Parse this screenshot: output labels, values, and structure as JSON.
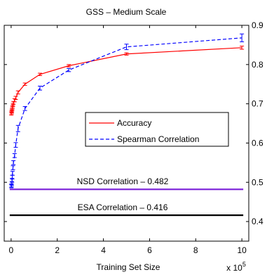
{
  "chart_data": {
    "type": "line",
    "title": "GSS – Medium Scale",
    "xlabel": "Training Set Size",
    "ylabel": "",
    "x_multiplier_label": "x 10",
    "x_multiplier_exponent": "5",
    "x_scale": 100000,
    "xlim": [
      -30000,
      1030000
    ],
    "ylim": [
      0.35,
      0.9
    ],
    "xticks": [
      0,
      200000,
      400000,
      600000,
      800000,
      1000000
    ],
    "xtick_labels": [
      "0",
      "2",
      "4",
      "6",
      "8",
      "10"
    ],
    "yticks": [
      0.4,
      0.5,
      0.6,
      0.7,
      0.8,
      0.9
    ],
    "ytick_labels": [
      "0.4",
      "0.5",
      "0.6",
      "0.7",
      "0.8",
      "0.9"
    ],
    "y_axis_side": "right",
    "grid": false,
    "legend_position": "center-right",
    "series": [
      {
        "name": "Accuracy",
        "color": "#ff0000",
        "style": "solid",
        "x": [
          1000,
          2000,
          3000,
          4000,
          5000,
          6000,
          8000,
          10000,
          15000,
          20000,
          30000,
          60000,
          125000,
          250000,
          500000,
          1000000
        ],
        "y": [
          0.675,
          0.678,
          0.681,
          0.684,
          0.688,
          0.692,
          0.697,
          0.702,
          0.709,
          0.715,
          0.729,
          0.75,
          0.775,
          0.797,
          0.827,
          0.843
        ],
        "err": [
          0.004,
          0.004,
          0.004,
          0.004,
          0.004,
          0.004,
          0.004,
          0.004,
          0.004,
          0.004,
          0.004,
          0.003,
          0.003,
          0.003,
          0.003,
          0.004
        ]
      },
      {
        "name": "Spearman Correlation",
        "color": "#0000ff",
        "style": "dashed",
        "x": [
          1000,
          2000,
          3000,
          4000,
          5000,
          6000,
          8000,
          10000,
          15000,
          20000,
          30000,
          60000,
          125000,
          250000,
          500000,
          1000000
        ],
        "y": [
          0.49,
          0.492,
          0.497,
          0.505,
          0.513,
          0.523,
          0.537,
          0.55,
          0.568,
          0.595,
          0.637,
          0.688,
          0.74,
          0.786,
          0.845,
          0.868
        ],
        "err": [
          0.004,
          0.004,
          0.005,
          0.005,
          0.005,
          0.005,
          0.005,
          0.005,
          0.005,
          0.006,
          0.008,
          0.005,
          0.005,
          0.004,
          0.007,
          0.01
        ]
      }
    ],
    "reference_lines": [
      {
        "label": "NSD Correlation – 0.482",
        "y": 0.482,
        "color": "#7a1fd9"
      },
      {
        "label": "ESA Correlation – 0.416",
        "y": 0.416,
        "color": "#000000"
      }
    ]
  }
}
